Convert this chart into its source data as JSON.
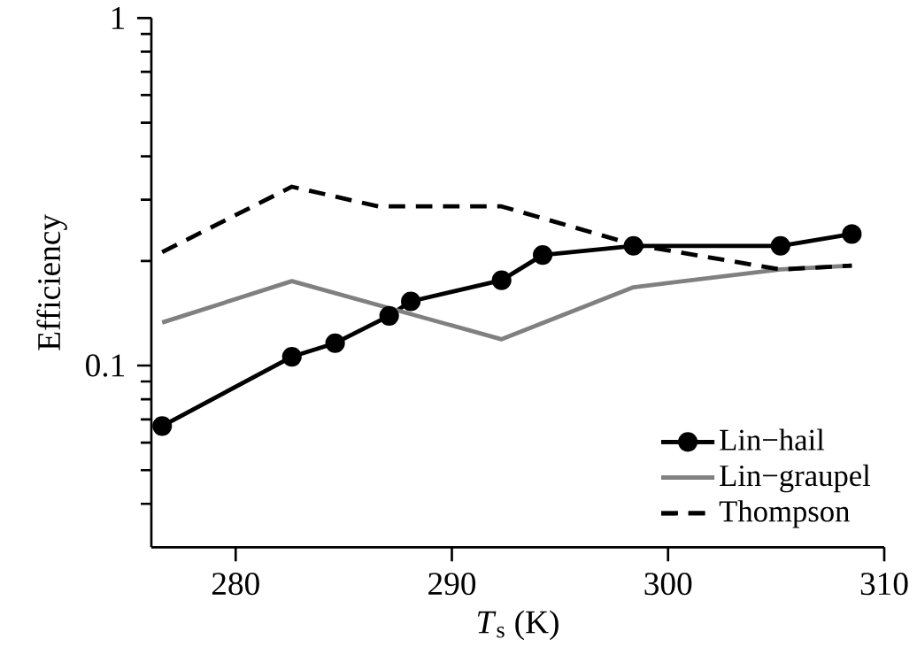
{
  "chart_data": {
    "type": "line",
    "xlabel": "*T*$_{s}$ (K)",
    "ylabel": "Efficiency",
    "log": "y",
    "xlim": [
      276.1,
      310
    ],
    "xticks": [
      280,
      290,
      300,
      310
    ],
    "ylim": [
      0.03,
      1
    ],
    "yticks": [
      {
        "value": 0.04,
        "label": null
      },
      {
        "value": 0.05,
        "label": null
      },
      {
        "value": 0.06,
        "label": null
      },
      {
        "value": 0.07,
        "label": null
      },
      {
        "value": 0.08,
        "label": null
      },
      {
        "value": 0.09,
        "label": null
      },
      0.1,
      {
        "value": 0.2,
        "label": null
      },
      {
        "value": 0.3,
        "label": null
      },
      {
        "value": 0.4,
        "label": null
      },
      {
        "value": 0.5,
        "label": null
      },
      {
        "value": 0.6,
        "label": null
      },
      {
        "value": 0.7,
        "label": null
      },
      {
        "value": 0.8,
        "label": null
      },
      {
        "value": 0.9,
        "label": null
      },
      1
    ],
    "grid": false,
    "legend": "bottom right",
    "series": [
      {
        "name": "Lin−hail",
        "color": "#000000",
        "marker": "circle",
        "line_style": "solid",
        "x": [
          276.6,
          282.6,
          284.6,
          287.1,
          288.1,
          292.3,
          294.2,
          298.4,
          305.2,
          308.5
        ],
        "values": [
          0.067,
          0.106,
          0.116,
          0.139,
          0.153,
          0.176,
          0.208,
          0.221,
          0.221,
          0.239
        ]
      },
      {
        "name": "Lin−graupel",
        "color": "#808080",
        "marker": "none",
        "line_style": "solid",
        "x": [
          276.6,
          282.6,
          292.3,
          298.4,
          305.2,
          308.5
        ],
        "values": [
          0.133,
          0.175,
          0.119,
          0.168,
          0.189,
          0.194
        ]
      },
      {
        "name": "Thompson",
        "color": "#000000",
        "marker": "none",
        "line_style": "dashed",
        "x": [
          276.6,
          282.6,
          286.6,
          292.3,
          298.4,
          305.2,
          308.5
        ],
        "values": [
          0.212,
          0.327,
          0.287,
          0.287,
          0.223,
          0.189,
          0.194
        ]
      }
    ]
  }
}
